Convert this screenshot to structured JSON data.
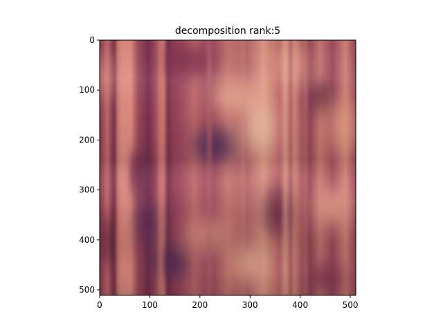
{
  "chart_data": {
    "type": "heatmap",
    "title": "decomposition rank:5",
    "xlabel": "",
    "ylabel": "",
    "xlim": [
      0,
      511
    ],
    "ylim": [
      511,
      0
    ],
    "x_ticks": [
      0,
      100,
      200,
      300,
      400,
      500
    ],
    "y_ticks": [
      0,
      100,
      200,
      300,
      400,
      500
    ],
    "x_tick_labels": [
      "0",
      "100",
      "200",
      "300",
      "400",
      "500"
    ],
    "y_tick_labels": [
      "0",
      "100",
      "200",
      "300",
      "400",
      "500"
    ],
    "image_description_colors": {
      "base": "#a8525e",
      "light": "#e9a08c",
      "dark": "#5a1a3c",
      "purple": "#4a2a5a",
      "highlight": "#f2c2a6"
    }
  }
}
